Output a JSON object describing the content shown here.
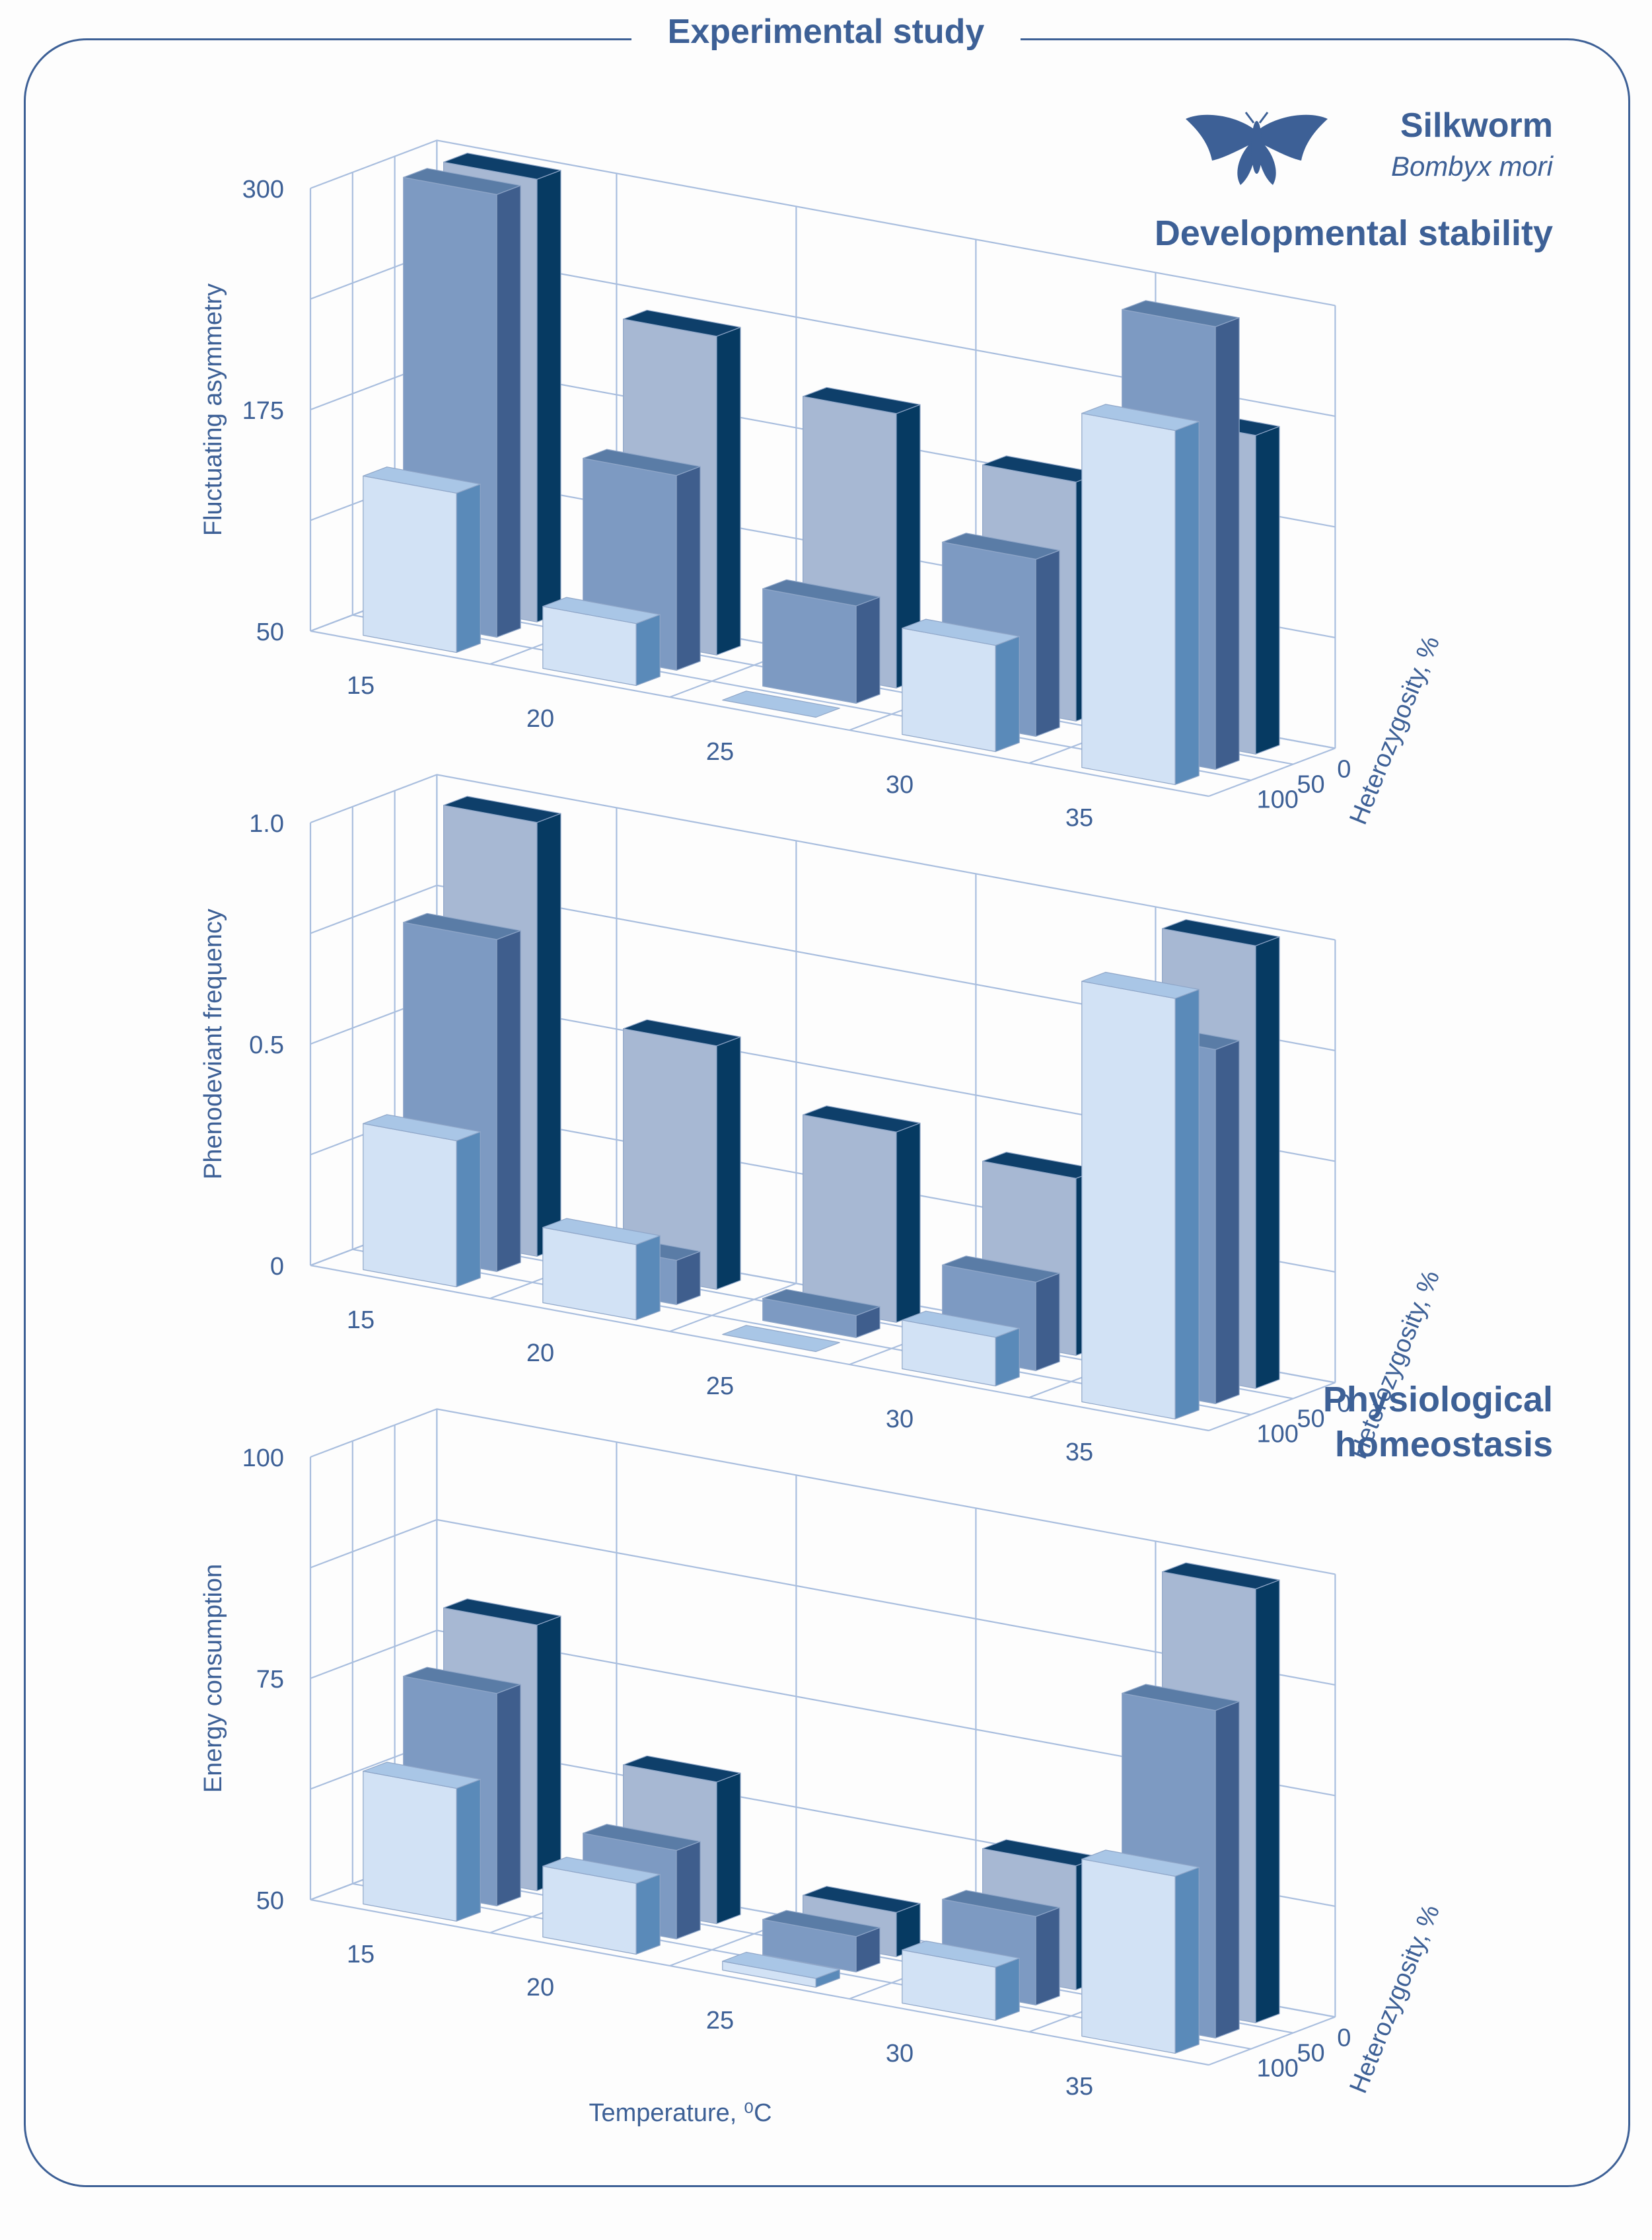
{
  "title": "Experimental study",
  "species": {
    "common_name": "Silkworm",
    "latin_name": "Bombyx mori"
  },
  "sections": {
    "developmental": "Developmental stability",
    "physiological": "Physiological homeostasis"
  },
  "colors": {
    "frame": "#3d6096",
    "text": "#3d6096",
    "grid": "#a9bede",
    "front_series": {
      "top": "#a9c6e6",
      "front": "#d2e2f5",
      "side": "#5a8ab9"
    },
    "mid_series": {
      "top": "#5a7ca6",
      "front": "#7d9ac2",
      "side": "#3f5e8d"
    },
    "back_series": {
      "top": "#0e3f6a",
      "front": "#a7b8d3",
      "side": "#063a62"
    }
  },
  "chart_data": [
    {
      "type": "bar3d",
      "ylabel": "Fluctuating asymmetry",
      "xlabel": "",
      "zlabel": "Heterozygosity, %",
      "categories": [
        "15",
        "20",
        "25",
        "30",
        "35"
      ],
      "depth_labels": [
        "0",
        "50",
        "100"
      ],
      "yticks": [
        "50",
        "175",
        "300"
      ],
      "ylim": [
        50,
        300
      ],
      "series": [
        {
          "name": "100",
          "values": [
            140,
            85,
            50,
            110,
            250
          ]
        },
        {
          "name": "50",
          "values": [
            300,
            160,
            105,
            150,
            300
          ]
        },
        {
          "name": "0",
          "values": [
            300,
            230,
            205,
            185,
            230
          ]
        }
      ]
    },
    {
      "type": "bar3d",
      "ylabel": "Phenodeviant frequency",
      "xlabel": "",
      "zlabel": "Heterozygosity, %",
      "categories": [
        "15",
        "20",
        "25",
        "30",
        "35"
      ],
      "depth_labels": [
        "0",
        "50",
        "100"
      ],
      "yticks": [
        "0",
        "0.5",
        "1.0"
      ],
      "ylim": [
        0,
        1
      ],
      "series": [
        {
          "name": "100",
          "values": [
            0.33,
            0.17,
            0.0,
            0.11,
            0.95
          ]
        },
        {
          "name": "50",
          "values": [
            0.75,
            0.1,
            0.05,
            0.2,
            0.8
          ]
        },
        {
          "name": "0",
          "values": [
            0.98,
            0.55,
            0.43,
            0.4,
            1.0
          ]
        }
      ]
    },
    {
      "type": "bar3d",
      "ylabel": "Energy consumption",
      "xlabel": "Temperature, ⁰C",
      "zlabel": "Heterozygosity, %",
      "categories": [
        "15",
        "20",
        "25",
        "30",
        "35"
      ],
      "depth_labels": [
        "0",
        "50",
        "100"
      ],
      "yticks": [
        "50",
        "75",
        "100"
      ],
      "ylim": [
        50,
        100
      ],
      "series": [
        {
          "name": "100",
          "values": [
            65,
            58,
            51,
            56,
            70
          ]
        },
        {
          "name": "50",
          "values": [
            74,
            60,
            54,
            60,
            87
          ]
        },
        {
          "name": "0",
          "values": [
            80,
            66,
            55,
            64,
            99
          ]
        }
      ]
    }
  ]
}
